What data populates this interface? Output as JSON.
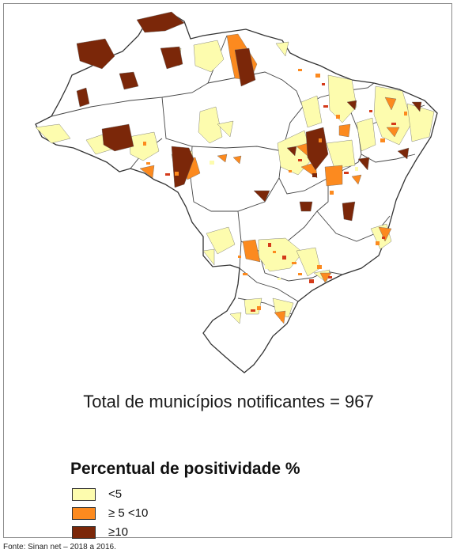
{
  "total_text": "Total de municípios notificantes = 967",
  "legend": {
    "title": "Percentual de positividade %",
    "items": [
      {
        "label": "<5",
        "color": "#fdfcae"
      },
      {
        "label": "≥ 5 <10",
        "color": "#fc8a1f"
      },
      {
        "label": "≥10",
        "color": "#7b2709"
      }
    ]
  },
  "source": "Fonte: Sinan net – 2018 a 2016.",
  "colors": {
    "outline": "#333333",
    "state_border": "#444444",
    "low": "#fdfcae",
    "mid": "#fc8a1f",
    "high": "#7b2709",
    "accent_red": "#d43a1a"
  }
}
